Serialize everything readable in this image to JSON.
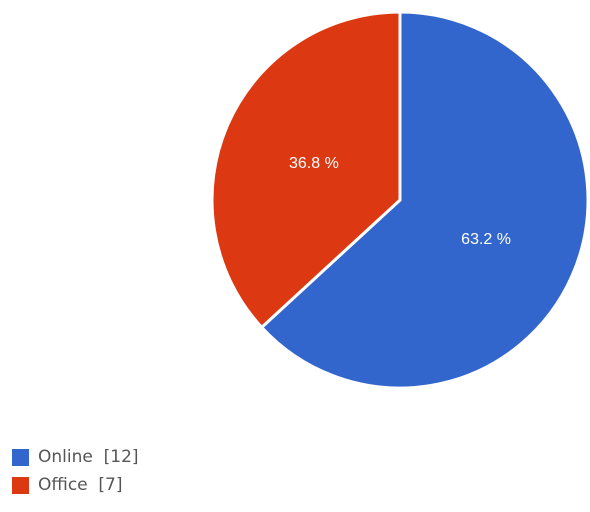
{
  "chart_data": {
    "type": "pie",
    "categories": [
      "Online",
      "Office"
    ],
    "values": [
      12,
      7
    ],
    "percent_labels": [
      "63.2 %",
      "36.8 %"
    ],
    "legend_labels": [
      "Online  [12]",
      "Office  [7]"
    ],
    "colors": [
      "#3366cc",
      "#dc3912"
    ],
    "legend_position": "bottom-left",
    "title": ""
  }
}
